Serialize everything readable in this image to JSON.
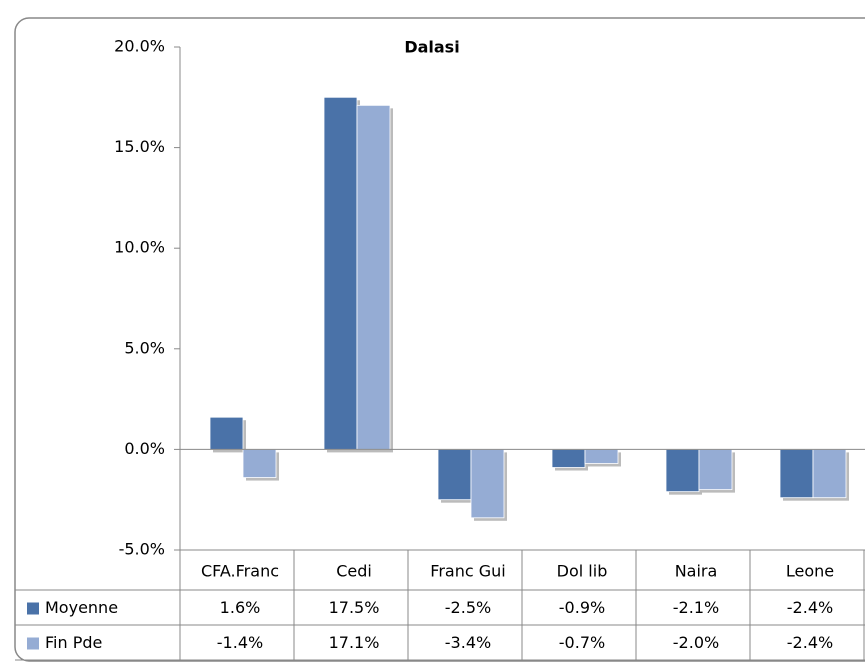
{
  "chart_data": {
    "type": "bar",
    "title": "Dalasi",
    "categories": [
      "CFA.Franc",
      "Cedi",
      "Franc Gui",
      "Dol lib",
      "Naira",
      "Leone"
    ],
    "series": [
      {
        "name": "Moyenne",
        "color": "#4a72a8",
        "values": [
          1.6,
          17.5,
          -2.5,
          -0.9,
          -2.1,
          -2.4
        ],
        "value_labels": [
          "1.6%",
          "17.5%",
          "-2.5%",
          "-0.9%",
          "-2.1%",
          "-2.4%"
        ]
      },
      {
        "name": "Fin Pde",
        "color": "#95acd4",
        "values": [
          -1.4,
          17.1,
          -3.4,
          -0.7,
          -2.0,
          -2.4
        ],
        "value_labels": [
          "-1.4%",
          "17.1%",
          "-3.4%",
          "-0.7%",
          "-2.0%",
          "-2.4%"
        ]
      }
    ],
    "ylim": [
      -5,
      20
    ],
    "yticks": [
      {
        "value": -5,
        "label": "-5.0%"
      },
      {
        "value": 0,
        "label": "0.0%"
      },
      {
        "value": 5,
        "label": "5.0%"
      },
      {
        "value": 10,
        "label": "10.0%"
      },
      {
        "value": 15,
        "label": "15.0%"
      },
      {
        "value": 20,
        "label": "20.0%"
      }
    ],
    "grid": false
  }
}
